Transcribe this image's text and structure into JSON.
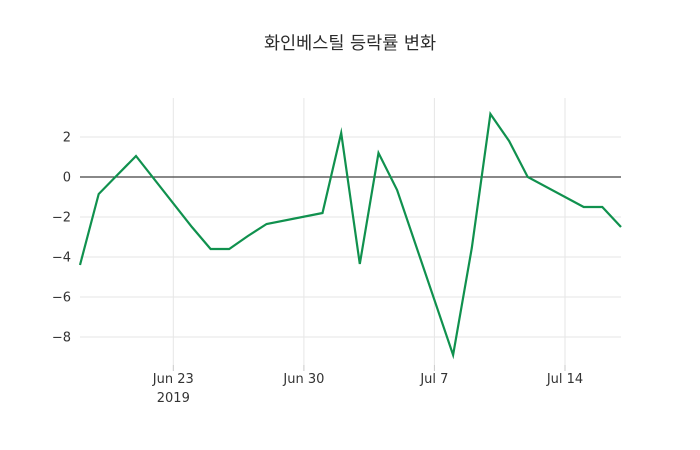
{
  "title": "화인베스틸 등락률 변화",
  "chart_data": {
    "type": "line",
    "title": "화인베스틸 등락률 변화",
    "line_color": "#10914e",
    "legend": "none",
    "grid": true,
    "zeroline": true,
    "xlim": [
      "2019-06-18",
      "2019-07-17"
    ],
    "ylim": [
      -9.4,
      3.95
    ],
    "y_ticks": [
      2,
      0,
      -2,
      -4,
      -6,
      -8
    ],
    "x_ticks": [
      {
        "date": "2019-06-23",
        "label": "Jun 23",
        "sublabel": "2019"
      },
      {
        "date": "2019-06-30",
        "label": "Jun 30"
      },
      {
        "date": "2019-07-07",
        "label": "Jul 7"
      },
      {
        "date": "2019-07-14",
        "label": "Jul 14"
      }
    ],
    "x": [
      "2019-06-18",
      "2019-06-19",
      "2019-06-20",
      "2019-06-21",
      "2019-06-24",
      "2019-06-25",
      "2019-06-26",
      "2019-06-27",
      "2019-06-28",
      "2019-07-01",
      "2019-07-02",
      "2019-07-03",
      "2019-07-04",
      "2019-07-05",
      "2019-07-08",
      "2019-07-09",
      "2019-07-10",
      "2019-07-11",
      "2019-07-12",
      "2019-07-15",
      "2019-07-16",
      "2019-07-17"
    ],
    "y": [
      -4.4,
      -0.85,
      0.1,
      1.05,
      -2.5,
      -3.6,
      -3.6,
      -2.95,
      -2.35,
      -1.8,
      2.2,
      -4.35,
      1.2,
      -0.65,
      -8.9,
      -3.55,
      3.15,
      1.8,
      0.0,
      -1.5,
      -1.5,
      -2.5
    ]
  },
  "style": {
    "background": "#ffffff",
    "grid_color": "#e6e6e6",
    "zero_line_color": "#424242",
    "tick_label_color": "#333333",
    "tick_mark_color": "#c8c8c8",
    "title_color": "#2b2b2b"
  }
}
